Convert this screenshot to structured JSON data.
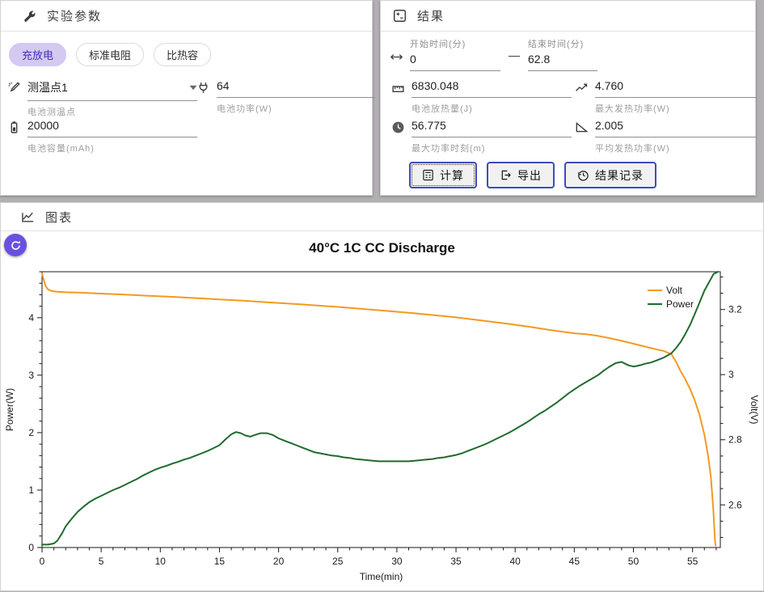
{
  "colors": {
    "volt_orange": "#f39a1f",
    "power_green": "#1f6b2d",
    "accent_purple": "#6950e0",
    "pill_active_bg": "#d4c9f1",
    "pill_active_text": "#4430b5",
    "button_border": "#3d4db7"
  },
  "params_card": {
    "title": "实验参数",
    "tabs": [
      {
        "label": "充放电",
        "active": true
      },
      {
        "label": "标准电阻",
        "active": false
      },
      {
        "label": "比热容",
        "active": false
      }
    ],
    "probe": {
      "value": "测温点1",
      "helper": "电池测温点"
    },
    "power": {
      "value": "64",
      "helper": "电池功率(W)"
    },
    "capacity": {
      "value": "20000",
      "helper": "电池容量(mAh)"
    }
  },
  "results_card": {
    "title": "结果",
    "range": {
      "start_label": "开始时间(分)",
      "start_value": "0",
      "separator": "—",
      "end_label": "结束时间(分)",
      "end_value": "62.8"
    },
    "metrics": [
      {
        "value": "6830.048",
        "label": "电池放热量(J)"
      },
      {
        "value": "4.760",
        "label": "最大发热功率(W)"
      },
      {
        "value": "56.775",
        "label": "最大功率时刻(m)"
      },
      {
        "value": "2.005",
        "label": "平均发热功率(W)"
      }
    ],
    "buttons": [
      {
        "label": "计算"
      },
      {
        "label": "导出"
      },
      {
        "label": "结果记录"
      }
    ]
  },
  "chart_card": {
    "title": "图表"
  },
  "chart_data": {
    "type": "line",
    "title": "40°C 1C CC Discharge",
    "xlabel": "Time(min)",
    "ylabel_left": "Power(W)",
    "ylabel_right": "Volt(V)",
    "xlim": [
      0,
      57.35
    ],
    "x_ticks": [
      0,
      5,
      10,
      15,
      20,
      25,
      30,
      35,
      40,
      45,
      50,
      55
    ],
    "x_minor_step": 1,
    "ylim_left": [
      0,
      4.8
    ],
    "y_ticks_left": [
      0,
      1,
      2,
      3,
      4
    ],
    "y_minor_step_left": 0.2,
    "ylim_right": [
      2.469,
      3.316
    ],
    "y_ticks_right": [
      2.6,
      2.8,
      3,
      3.2
    ],
    "y_minor_step_right": 0.05,
    "grid": false,
    "legend_position": "upper right",
    "series": [
      {
        "name": "Volt",
        "color": "#f39a1f",
        "axis": "right",
        "points": [
          [
            0,
            3.31
          ],
          [
            0.15,
            3.29
          ],
          [
            0.3,
            3.272
          ],
          [
            0.5,
            3.262
          ],
          [
            0.8,
            3.257
          ],
          [
            1.2,
            3.255
          ],
          [
            2,
            3.253
          ],
          [
            3,
            3.252
          ],
          [
            5,
            3.249
          ],
          [
            7,
            3.246
          ],
          [
            9,
            3.242
          ],
          [
            11,
            3.239
          ],
          [
            13,
            3.235
          ],
          [
            15,
            3.231
          ],
          [
            17,
            3.227
          ],
          [
            19,
            3.222
          ],
          [
            21,
            3.218
          ],
          [
            23,
            3.213
          ],
          [
            25,
            3.208
          ],
          [
            27,
            3.202
          ],
          [
            29,
            3.196
          ],
          [
            31,
            3.19
          ],
          [
            33,
            3.183
          ],
          [
            35,
            3.176
          ],
          [
            37,
            3.167
          ],
          [
            39,
            3.158
          ],
          [
            41,
            3.148
          ],
          [
            43,
            3.137
          ],
          [
            45,
            3.127
          ],
          [
            46,
            3.124
          ],
          [
            47,
            3.119
          ],
          [
            48,
            3.112
          ],
          [
            49,
            3.104
          ],
          [
            50,
            3.095
          ],
          [
            51,
            3.086
          ],
          [
            52,
            3.077
          ],
          [
            52.6,
            3.072
          ],
          [
            53.2,
            3.063
          ],
          [
            53.6,
            3.04
          ],
          [
            54,
            3.01
          ],
          [
            54.4,
            2.985
          ],
          [
            54.8,
            2.955
          ],
          [
            55.2,
            2.92
          ],
          [
            55.6,
            2.875
          ],
          [
            56,
            2.815
          ],
          [
            56.3,
            2.755
          ],
          [
            56.55,
            2.685
          ],
          [
            56.75,
            2.59
          ],
          [
            56.9,
            2.49
          ],
          [
            56.95,
            2.475
          ]
        ]
      },
      {
        "name": "Power",
        "color": "#1f6b2d",
        "axis": "left",
        "points": [
          [
            0,
            0.05
          ],
          [
            0.5,
            0.05
          ],
          [
            1,
            0.07
          ],
          [
            1.3,
            0.12
          ],
          [
            1.7,
            0.25
          ],
          [
            2,
            0.37
          ],
          [
            2.5,
            0.5
          ],
          [
            3,
            0.62
          ],
          [
            3.5,
            0.71
          ],
          [
            4,
            0.79
          ],
          [
            4.5,
            0.85
          ],
          [
            5,
            0.9
          ],
          [
            5.5,
            0.95
          ],
          [
            6,
            1.0
          ],
          [
            6.5,
            1.04
          ],
          [
            7,
            1.09
          ],
          [
            7.5,
            1.14
          ],
          [
            8,
            1.19
          ],
          [
            8.5,
            1.25
          ],
          [
            9,
            1.3
          ],
          [
            9.5,
            1.35
          ],
          [
            10,
            1.39
          ],
          [
            10.5,
            1.42
          ],
          [
            11,
            1.46
          ],
          [
            11.5,
            1.49
          ],
          [
            12,
            1.53
          ],
          [
            12.5,
            1.56
          ],
          [
            13,
            1.6
          ],
          [
            13.5,
            1.64
          ],
          [
            14,
            1.68
          ],
          [
            14.5,
            1.73
          ],
          [
            15,
            1.78
          ],
          [
            15.5,
            1.88
          ],
          [
            16,
            1.97
          ],
          [
            16.4,
            2.01
          ],
          [
            16.8,
            1.99
          ],
          [
            17.2,
            1.95
          ],
          [
            17.6,
            1.93
          ],
          [
            18,
            1.96
          ],
          [
            18.5,
            1.99
          ],
          [
            19,
            1.99
          ],
          [
            19.5,
            1.96
          ],
          [
            20,
            1.9
          ],
          [
            20.5,
            1.86
          ],
          [
            21,
            1.82
          ],
          [
            21.5,
            1.78
          ],
          [
            22,
            1.74
          ],
          [
            22.5,
            1.7
          ],
          [
            23,
            1.66
          ],
          [
            23.5,
            1.64
          ],
          [
            24,
            1.62
          ],
          [
            24.5,
            1.6
          ],
          [
            25,
            1.59
          ],
          [
            25.5,
            1.57
          ],
          [
            26,
            1.56
          ],
          [
            26.5,
            1.54
          ],
          [
            27,
            1.53
          ],
          [
            27.5,
            1.52
          ],
          [
            28,
            1.51
          ],
          [
            28.5,
            1.5
          ],
          [
            29,
            1.5
          ],
          [
            30,
            1.5
          ],
          [
            31,
            1.5
          ],
          [
            31.5,
            1.51
          ],
          [
            32,
            1.52
          ],
          [
            32.5,
            1.53
          ],
          [
            33,
            1.54
          ],
          [
            33.5,
            1.56
          ],
          [
            34,
            1.57
          ],
          [
            34.5,
            1.59
          ],
          [
            35,
            1.61
          ],
          [
            35.5,
            1.64
          ],
          [
            36,
            1.68
          ],
          [
            36.5,
            1.72
          ],
          [
            37,
            1.76
          ],
          [
            37.5,
            1.8
          ],
          [
            38,
            1.85
          ],
          [
            38.5,
            1.9
          ],
          [
            39,
            1.95
          ],
          [
            39.5,
            2.0
          ],
          [
            40,
            2.06
          ],
          [
            40.5,
            2.12
          ],
          [
            41,
            2.18
          ],
          [
            41.5,
            2.25
          ],
          [
            42,
            2.32
          ],
          [
            42.5,
            2.38
          ],
          [
            43,
            2.45
          ],
          [
            43.5,
            2.52
          ],
          [
            44,
            2.6
          ],
          [
            44.5,
            2.68
          ],
          [
            45,
            2.75
          ],
          [
            45.5,
            2.82
          ],
          [
            46,
            2.88
          ],
          [
            46.5,
            2.94
          ],
          [
            47,
            3.0
          ],
          [
            47.5,
            3.08
          ],
          [
            48,
            3.15
          ],
          [
            48.5,
            3.21
          ],
          [
            49,
            3.23
          ],
          [
            49.3,
            3.2
          ],
          [
            49.6,
            3.17
          ],
          [
            50,
            3.15
          ],
          [
            50.3,
            3.16
          ],
          [
            50.7,
            3.18
          ],
          [
            51,
            3.2
          ],
          [
            51.5,
            3.22
          ],
          [
            52,
            3.26
          ],
          [
            52.6,
            3.31
          ],
          [
            53.2,
            3.38
          ],
          [
            53.6,
            3.47
          ],
          [
            54,
            3.58
          ],
          [
            54.4,
            3.72
          ],
          [
            54.8,
            3.88
          ],
          [
            55.2,
            4.07
          ],
          [
            55.6,
            4.27
          ],
          [
            56,
            4.47
          ],
          [
            56.4,
            4.62
          ],
          [
            56.775,
            4.76
          ],
          [
            57.15,
            4.8
          ]
        ]
      }
    ]
  }
}
